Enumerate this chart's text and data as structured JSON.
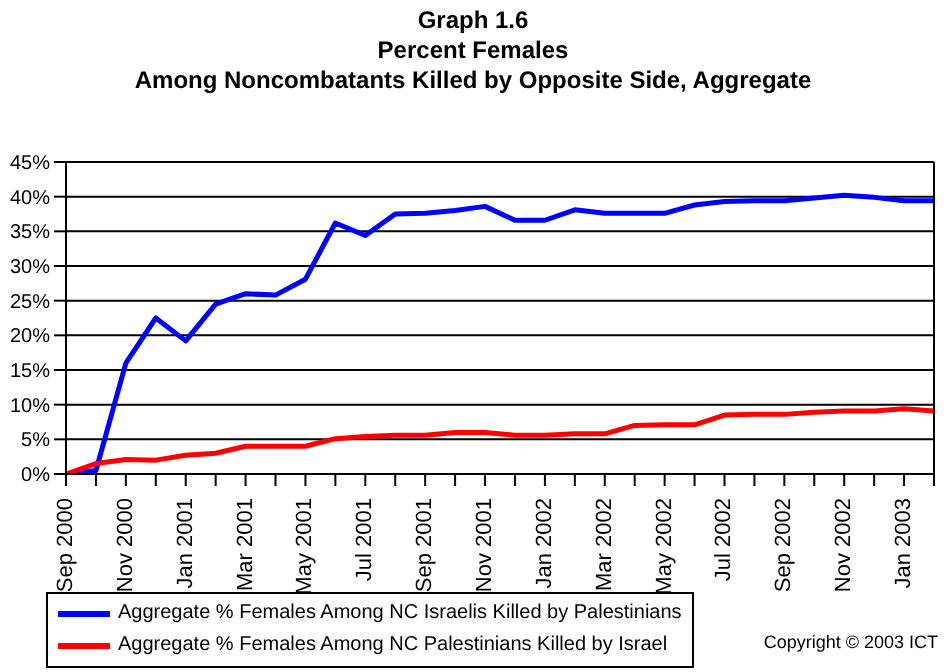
{
  "chart_data": {
    "type": "line",
    "title": "Graph 1.6\nPercent Females\nAmong Noncombatants Killed by Opposite Side, Aggregate",
    "categories": [
      "Sep 2000",
      null,
      "Nov 2000",
      null,
      "Jan 2001",
      null,
      "Mar 2001",
      null,
      "May 2001",
      null,
      "Jul 2001",
      null,
      "Sep 2001",
      null,
      "Nov 2001",
      null,
      "Jan 2002",
      null,
      "Mar 2002",
      null,
      "May 2002",
      null,
      "Jul 2002",
      null,
      "Sep 2002",
      null,
      "Nov 2002",
      null,
      "Jan 2003",
      null
    ],
    "series": [
      {
        "name": "Aggregate % Females Among NC Israelis Killed by Palestinians",
        "color": "#0000ff",
        "values": [
          0,
          0.5,
          16,
          22.5,
          19.2,
          24.5,
          26,
          25.8,
          28.1,
          36.2,
          34.4,
          37.5,
          37.6,
          38,
          38.6,
          36.6,
          36.6,
          38.1,
          37.6,
          37.6,
          37.6,
          38.8,
          39.3,
          39.4,
          39.4,
          39.8,
          40.2,
          39.9,
          39.4,
          39.4
        ]
      },
      {
        "name": "Aggregate % Females Among NC Palestinians Killed by Israel",
        "color": "#ff0000",
        "values": [
          0,
          1.5,
          2.1,
          2,
          2.7,
          3,
          4,
          4,
          4,
          5.1,
          5.4,
          5.6,
          5.6,
          6,
          6,
          5.6,
          5.6,
          5.8,
          5.8,
          7,
          7.1,
          7.1,
          8.5,
          8.6,
          8.6,
          8.9,
          9.1,
          9.1,
          9.4,
          9.1
        ]
      }
    ],
    "ylim": [
      0,
      45
    ],
    "yticks": [
      {
        "value": 0,
        "label": "0%"
      },
      {
        "value": 5,
        "label": "5%"
      },
      {
        "value": 10,
        "label": "10%"
      },
      {
        "value": 15,
        "label": "15%"
      },
      {
        "value": 20,
        "label": "20%"
      },
      {
        "value": 25,
        "label": "25%"
      },
      {
        "value": 30,
        "label": "30%"
      },
      {
        "value": 35,
        "label": "35%"
      },
      {
        "value": 40,
        "label": "40%"
      },
      {
        "value": 45,
        "label": "45%"
      }
    ],
    "grid": "y",
    "legend": "bottom left",
    "marker": "none",
    "line_style": "solid",
    "annotations": [
      "Copyright © 2003 ICT"
    ]
  }
}
